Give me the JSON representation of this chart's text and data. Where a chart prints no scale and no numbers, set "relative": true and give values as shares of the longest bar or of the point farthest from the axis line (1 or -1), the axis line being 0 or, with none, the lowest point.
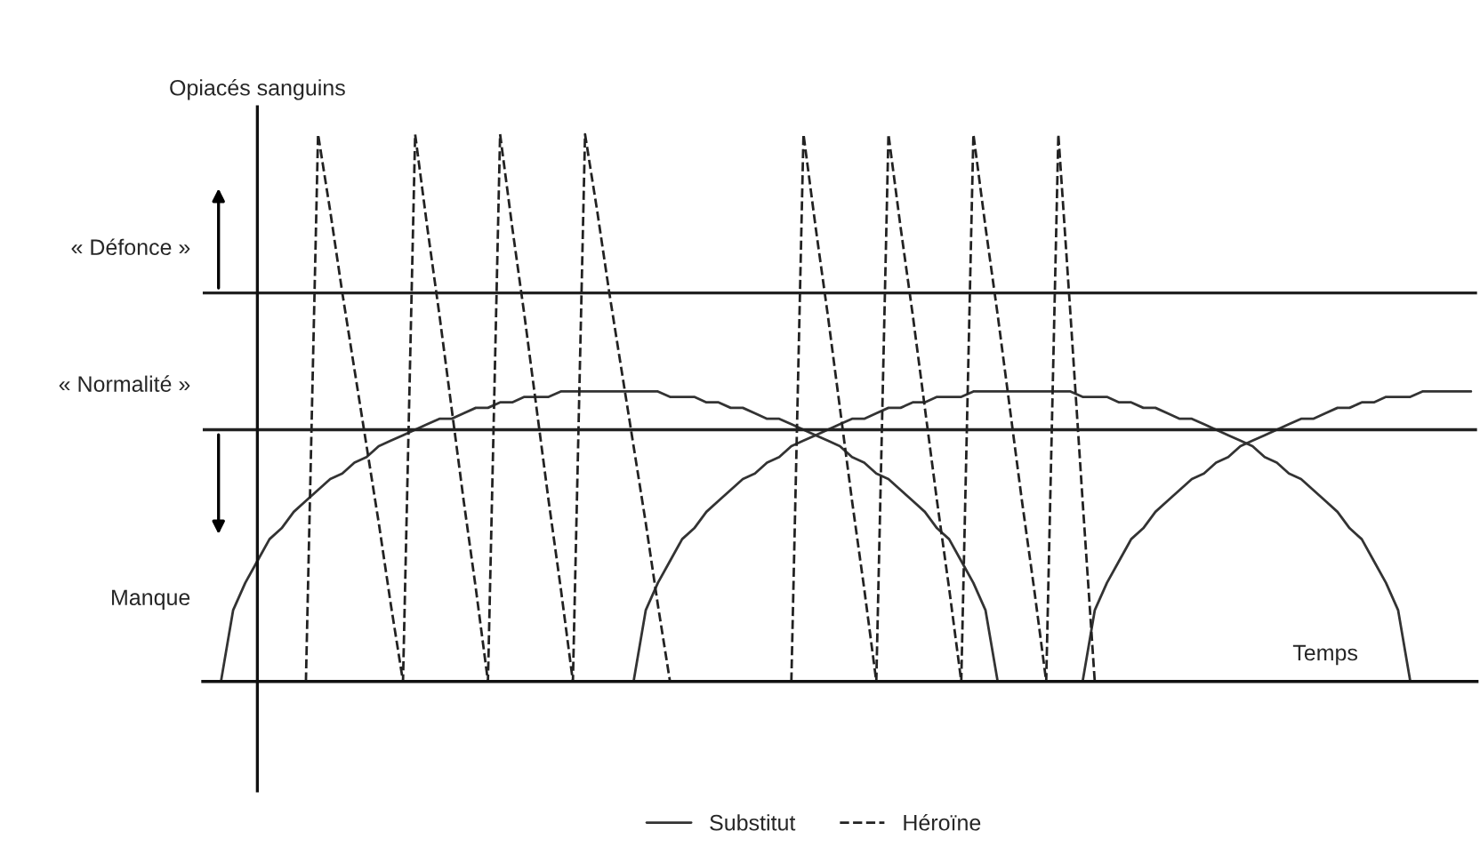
{
  "chart_data": {
    "type": "line",
    "relative": true,
    "ylabel": "Opiacés sanguins",
    "xlabel": "Temps",
    "ylim": [
      -0.2,
      1.05
    ],
    "legend": "bottom",
    "categories": [
      null,
      null,
      null,
      null,
      null,
      null,
      null,
      null,
      null,
      null,
      null,
      null,
      null,
      null,
      null,
      null,
      null,
      null,
      null,
      null,
      null,
      null,
      null,
      null,
      null,
      null,
      null,
      null,
      null,
      null,
      null,
      null,
      null,
      null,
      null,
      null,
      null,
      null,
      null,
      null,
      null,
      null,
      null,
      null,
      null,
      null,
      null,
      null,
      null,
      null,
      null,
      null,
      null,
      null,
      null,
      null,
      null,
      null,
      null,
      null,
      null,
      null,
      null,
      null,
      null,
      null,
      null,
      null,
      null,
      null,
      null,
      null,
      null,
      null,
      null,
      null,
      null,
      null,
      null,
      null,
      null,
      null,
      null,
      null,
      null,
      null,
      null,
      null,
      null,
      null,
      null,
      null,
      null,
      null,
      null,
      null,
      null,
      null,
      null,
      null,
      null,
      null,
      null,
      null,
      null
    ],
    "series": [
      {
        "name": "Substitut",
        "color": "#333333",
        "line_style": "solid",
        "values": [
          null,
          0,
          0.13,
          0.18,
          0.22,
          0.26,
          0.28,
          0.31,
          0.33,
          0.35,
          0.37,
          0.38,
          0.4,
          0.41,
          0.43,
          0.44,
          0.45,
          0.46,
          0.47,
          0.48,
          0.48,
          0.49,
          0.5,
          0.5,
          0.51,
          0.51,
          0.52,
          0.52,
          0.52,
          0.53,
          0.53,
          0.53,
          0.53,
          0.53,
          0.53,
          0.53,
          0.53,
          0.53,
          0.52,
          0.52,
          0.52,
          0.51,
          0.51,
          0.5,
          0.5,
          0.49,
          0.48,
          0.48,
          0.47,
          0.46,
          0.45,
          0.44,
          0.43,
          0.41,
          0.4,
          0.38,
          0.37,
          0.35,
          0.33,
          0.31,
          0.28,
          0.26,
          0.22,
          0.18,
          0.13,
          0,
          null,
          null,
          null,
          null,
          null,
          null,
          null,
          null,
          null,
          null,
          null,
          null,
          null,
          null,
          null,
          null,
          null,
          null,
          null,
          null,
          null,
          null,
          null,
          null,
          null,
          null,
          null,
          null,
          null,
          null,
          null,
          null,
          null,
          null,
          null,
          null,
          null,
          null,
          null
        ]
      },
      {
        "color": "#333333",
        "line_style": "solid",
        "values": [
          null,
          null,
          null,
          null,
          null,
          null,
          null,
          null,
          null,
          null,
          null,
          null,
          null,
          null,
          null,
          null,
          null,
          null,
          null,
          null,
          null,
          null,
          null,
          null,
          null,
          null,
          null,
          null,
          null,
          null,
          null,
          null,
          null,
          null,
          null,
          0,
          0.13,
          0.18,
          0.22,
          0.26,
          0.28,
          0.31,
          0.33,
          0.35,
          0.37,
          0.38,
          0.4,
          0.41,
          0.43,
          0.44,
          0.45,
          0.46,
          0.47,
          0.48,
          0.48,
          0.49,
          0.5,
          0.5,
          0.51,
          0.51,
          0.52,
          0.52,
          0.52,
          0.53,
          0.53,
          0.53,
          0.53,
          0.53,
          0.53,
          0.53,
          0.53,
          0.53,
          0.52,
          0.52,
          0.52,
          0.51,
          0.51,
          0.5,
          0.5,
          0.49,
          0.48,
          0.48,
          0.47,
          0.46,
          0.45,
          0.44,
          0.43,
          0.41,
          0.4,
          0.38,
          0.37,
          0.35,
          0.33,
          0.31,
          0.28,
          0.26,
          0.22,
          0.18,
          0.13,
          0,
          null,
          null,
          null,
          null,
          null
        ]
      },
      {
        "color": "#333333",
        "line_style": "solid",
        "values": [
          null,
          null,
          null,
          null,
          null,
          null,
          null,
          null,
          null,
          null,
          null,
          null,
          null,
          null,
          null,
          null,
          null,
          null,
          null,
          null,
          null,
          null,
          null,
          null,
          null,
          null,
          null,
          null,
          null,
          null,
          null,
          null,
          null,
          null,
          null,
          null,
          null,
          null,
          null,
          null,
          null,
          null,
          null,
          null,
          null,
          null,
          null,
          null,
          null,
          null,
          null,
          null,
          null,
          null,
          null,
          null,
          null,
          null,
          null,
          null,
          null,
          null,
          null,
          null,
          null,
          null,
          null,
          null,
          null,
          null,
          null,
          null,
          0,
          0.13,
          0.18,
          0.22,
          0.26,
          0.28,
          0.31,
          0.33,
          0.35,
          0.37,
          0.38,
          0.4,
          0.41,
          0.43,
          0.44,
          0.45,
          0.46,
          0.47,
          0.48,
          0.48,
          0.49,
          0.5,
          0.5,
          0.51,
          0.51,
          0.52,
          0.52,
          0.52,
          0.53,
          0.53,
          0.53,
          0.53,
          0.53
        ]
      },
      {
        "name": "Héroïne",
        "color": "#222222",
        "line_style": "dashed",
        "values": [
          null,
          null,
          null,
          null,
          null,
          null,
          null,
          null,
          0,
          1,
          0.86,
          0.71,
          0.57,
          0.43,
          0.29,
          0.14,
          0,
          1,
          0.83,
          0.67,
          0.5,
          0.33,
          0.17,
          0,
          1,
          0.83,
          0.67,
          0.5,
          0.33,
          0.17,
          0,
          1,
          0.86,
          0.71,
          0.57,
          0.43,
          0.29,
          0.14,
          0,
          null,
          null,
          null,
          null,
          null,
          null,
          null,
          null,
          null,
          0,
          1,
          0.83,
          0.67,
          0.5,
          0.33,
          0.17,
          0,
          1,
          0.83,
          0.67,
          0.5,
          0.33,
          0.17,
          0,
          1,
          0.83,
          0.67,
          0.5,
          0.33,
          0.17,
          0,
          1,
          0.67,
          0.33,
          0,
          null,
          null,
          null,
          null,
          null,
          null,
          null,
          null,
          null,
          null,
          null,
          null,
          null,
          null,
          null,
          null,
          null,
          null,
          null,
          null,
          null,
          null,
          null,
          null,
          null,
          null,
          null,
          null,
          null,
          null,
          null
        ]
      }
    ],
    "ref_lines": [
      {
        "axis": "y",
        "value": 0.71,
        "label": "« Défonce »",
        "color": "#222222"
      },
      {
        "axis": "y",
        "value": 0.46,
        "label": "« Normalité »",
        "color": "#222222"
      }
    ],
    "annotations": [
      "Manque"
    ]
  }
}
